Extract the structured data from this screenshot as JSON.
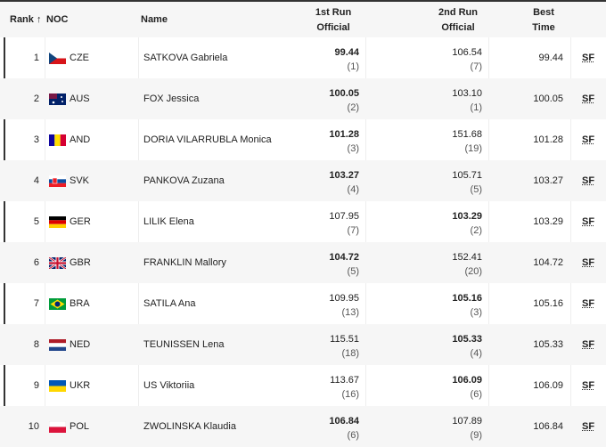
{
  "header": {
    "rank": "Rank",
    "sort_icon": "↑",
    "noc": "NOC",
    "name": "Name",
    "run1_l1": "1st Run",
    "run1_l2": "Official",
    "run2_l1": "2nd Run",
    "run2_l2": "Official",
    "best_l1": "Best",
    "best_l2": "Time"
  },
  "rows": [
    {
      "rank": "1",
      "noc": "CZE",
      "name": "SATKOVA Gabriela",
      "run1": "99.44",
      "run1_pos": "(1)",
      "run2": "106.54",
      "run2_pos": "(7)",
      "best": "99.44",
      "best_run": 1,
      "sf": "SF"
    },
    {
      "rank": "2",
      "noc": "AUS",
      "name": "FOX Jessica",
      "run1": "100.05",
      "run1_pos": "(2)",
      "run2": "103.10",
      "run2_pos": "(1)",
      "best": "100.05",
      "best_run": 1,
      "sf": "SF"
    },
    {
      "rank": "3",
      "noc": "AND",
      "name": "DORIA VILARRUBLA Monica",
      "run1": "101.28",
      "run1_pos": "(3)",
      "run2": "151.68",
      "run2_pos": "(19)",
      "best": "101.28",
      "best_run": 1,
      "sf": "SF"
    },
    {
      "rank": "4",
      "noc": "SVK",
      "name": "PANKOVA Zuzana",
      "run1": "103.27",
      "run1_pos": "(4)",
      "run2": "105.71",
      "run2_pos": "(5)",
      "best": "103.27",
      "best_run": 1,
      "sf": "SF"
    },
    {
      "rank": "5",
      "noc": "GER",
      "name": "LILIK Elena",
      "run1": "107.95",
      "run1_pos": "(7)",
      "run2": "103.29",
      "run2_pos": "(2)",
      "best": "103.29",
      "best_run": 2,
      "sf": "SF"
    },
    {
      "rank": "6",
      "noc": "GBR",
      "name": "FRANKLIN Mallory",
      "run1": "104.72",
      "run1_pos": "(5)",
      "run2": "152.41",
      "run2_pos": "(20)",
      "best": "104.72",
      "best_run": 1,
      "sf": "SF"
    },
    {
      "rank": "7",
      "noc": "BRA",
      "name": "SATILA Ana",
      "run1": "109.95",
      "run1_pos": "(13)",
      "run2": "105.16",
      "run2_pos": "(3)",
      "best": "105.16",
      "best_run": 2,
      "sf": "SF"
    },
    {
      "rank": "8",
      "noc": "NED",
      "name": "TEUNISSEN Lena",
      "run1": "115.51",
      "run1_pos": "(18)",
      "run2": "105.33",
      "run2_pos": "(4)",
      "best": "105.33",
      "best_run": 2,
      "sf": "SF"
    },
    {
      "rank": "9",
      "noc": "UKR",
      "name": "US Viktoriia",
      "run1": "113.67",
      "run1_pos": "(16)",
      "run2": "106.09",
      "run2_pos": "(6)",
      "best": "106.09",
      "best_run": 2,
      "sf": "SF"
    },
    {
      "rank": "10",
      "noc": "POL",
      "name": "ZWOLINSKA Klaudia",
      "run1": "106.84",
      "run1_pos": "(6)",
      "run2": "107.89",
      "run2_pos": "(9)",
      "best": "106.84",
      "best_run": 1,
      "sf": "SF"
    }
  ]
}
